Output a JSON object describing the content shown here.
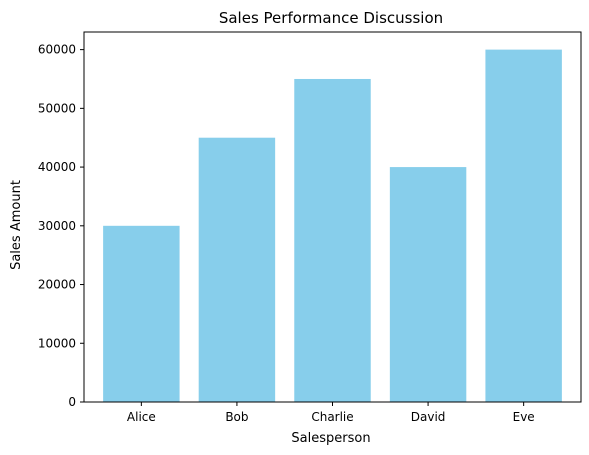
{
  "chart_data": {
    "type": "bar",
    "title": "Sales Performance Discussion",
    "xlabel": "Salesperson",
    "ylabel": "Sales Amount",
    "categories": [
      "Alice",
      "Bob",
      "Charlie",
      "David",
      "Eve"
    ],
    "values": [
      30000,
      45000,
      55000,
      40000,
      60000
    ],
    "ylim": [
      0,
      63000
    ],
    "yticks": [
      0,
      10000,
      20000,
      30000,
      40000,
      50000,
      60000
    ],
    "bar_color": "#87CEEB",
    "grid": false,
    "legend": "none"
  }
}
